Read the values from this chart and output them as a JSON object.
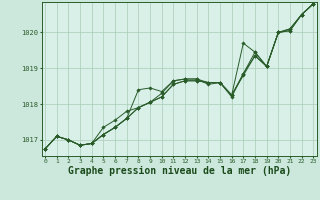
{
  "bg_color": "#cce8dc",
  "plot_bg_color": "#d8f0e8",
  "grid_color": "#aaccb8",
  "line_color": "#2a5c2a",
  "marker_color": "#2a5c2a",
  "xlabel": "Graphe pression niveau de la mer (hPa)",
  "xlabel_fontsize": 7,
  "xlabel_color": "#1a4a1a",
  "ylabel_ticks": [
    1017,
    1018,
    1019,
    1020
  ],
  "xlim": [
    -0.3,
    23.3
  ],
  "ylim": [
    1016.55,
    1020.85
  ],
  "xtick_labels": [
    "0",
    "1",
    "2",
    "3",
    "4",
    "5",
    "6",
    "7",
    "8",
    "9",
    "10",
    "11",
    "12",
    "13",
    "14",
    "15",
    "16",
    "17",
    "18",
    "19",
    "20",
    "21",
    "22",
    "23"
  ],
  "series": [
    [
      1016.75,
      1017.1,
      1017.0,
      1016.85,
      1016.9,
      1017.15,
      1017.35,
      1017.6,
      1017.9,
      1018.05,
      1018.2,
      1018.55,
      1018.65,
      1018.65,
      1018.6,
      1018.6,
      1018.25,
      1018.8,
      1019.35,
      1019.05,
      1020.0,
      1020.05,
      1020.5,
      1020.8
    ],
    [
      1016.75,
      1017.1,
      1017.0,
      1016.85,
      1016.9,
      1017.15,
      1017.35,
      1017.6,
      1018.4,
      1018.45,
      1018.35,
      1018.65,
      1018.7,
      1018.7,
      1018.55,
      1018.6,
      1018.2,
      1018.85,
      1019.35,
      1019.05,
      1020.0,
      1020.1,
      1020.5,
      1020.8
    ],
    [
      1016.75,
      1017.1,
      1017.0,
      1016.85,
      1016.9,
      1017.35,
      1017.55,
      1017.8,
      1017.9,
      1018.05,
      1018.3,
      1018.65,
      1018.7,
      1018.7,
      1018.6,
      1018.6,
      1018.25,
      1018.85,
      1019.45,
      1019.05,
      1020.0,
      1020.05,
      1020.5,
      1020.8
    ],
    [
      1016.75,
      1017.1,
      1017.0,
      1016.85,
      1016.9,
      1017.15,
      1017.35,
      1017.6,
      1017.9,
      1018.05,
      1018.2,
      1018.55,
      1018.65,
      1018.65,
      1018.6,
      1018.6,
      1018.25,
      1019.7,
      1019.45,
      1019.05,
      1020.0,
      1020.1,
      1020.5,
      1020.8
    ]
  ],
  "line_width": 0.7,
  "marker_size": 1.8,
  "font_family": "monospace"
}
